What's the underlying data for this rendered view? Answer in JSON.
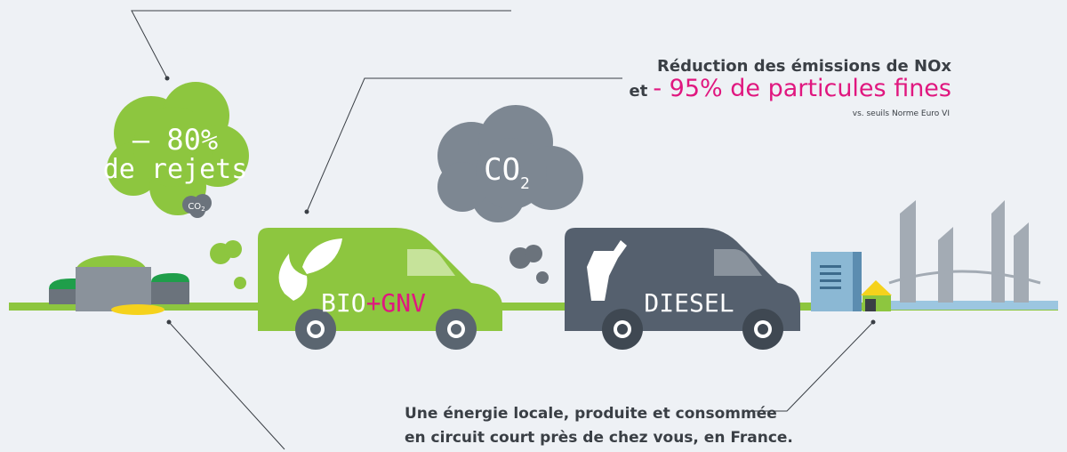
{
  "callouts": {
    "nox": {
      "line1": "Réduction des émissions de NOx",
      "prefix": "et",
      "highlight": "- 95% de particules fines",
      "note": "vs. seuils Norme Euro VI"
    },
    "local": {
      "line1": "Une énergie locale, produite et consommée",
      "line2": "en circuit court près de chez vous, en France."
    }
  },
  "co2_reduction": {
    "value": "– 80%",
    "label": "de rejets",
    "gas": "CO",
    "subscript": "2"
  },
  "co2_cloud": {
    "gas": "CO",
    "subscript": "2"
  },
  "vans": {
    "bio": {
      "brand": "BIO",
      "accent": "+GNV"
    },
    "diesel": {
      "label": "DIESEL"
    }
  }
}
